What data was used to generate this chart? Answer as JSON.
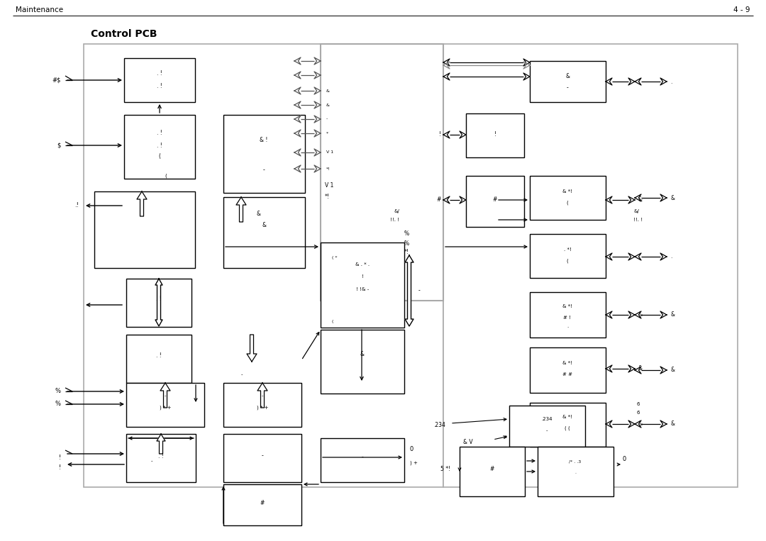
{
  "title": "Control PCB",
  "header_left": "Maintenance",
  "header_right": "4 - 9",
  "bg": "#ffffff"
}
